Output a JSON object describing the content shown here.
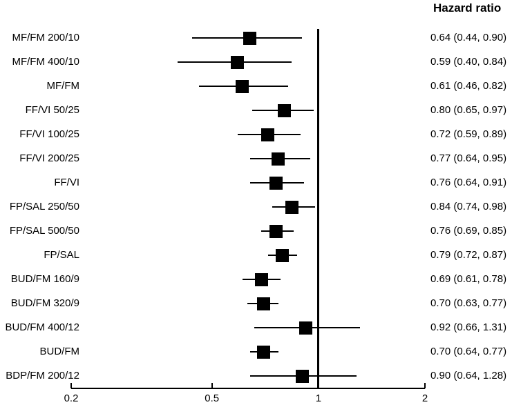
{
  "column_header": "Hazard ratio",
  "colors": {
    "foreground": "#000000",
    "background": "#ffffff"
  },
  "chart_data": {
    "type": "forest",
    "title": "Hazard ratio",
    "x_axis": {
      "scale": "log",
      "range": [
        0.2,
        2
      ],
      "ticks": [
        0.2,
        0.5,
        1,
        2
      ],
      "tick_labels": [
        "0.2",
        "0.5",
        "1",
        "2"
      ],
      "reference_line": 1
    },
    "legend": "none",
    "rows": [
      {
        "label": "MF/FM 200/10",
        "hr": 0.64,
        "ci_low": 0.44,
        "ci_high": 0.9,
        "display": "0.64 (0.44, 0.90)"
      },
      {
        "label": "MF/FM 400/10",
        "hr": 0.59,
        "ci_low": 0.4,
        "ci_high": 0.84,
        "display": "0.59 (0.40, 0.84)"
      },
      {
        "label": "MF/FM",
        "hr": 0.61,
        "ci_low": 0.46,
        "ci_high": 0.82,
        "display": "0.61 (0.46, 0.82)"
      },
      {
        "label": "FF/VI 50/25",
        "hr": 0.8,
        "ci_low": 0.65,
        "ci_high": 0.97,
        "display": "0.80 (0.65, 0.97)"
      },
      {
        "label": "FF/VI 100/25",
        "hr": 0.72,
        "ci_low": 0.59,
        "ci_high": 0.89,
        "display": "0.72 (0.59, 0.89)"
      },
      {
        "label": "FF/VI 200/25",
        "hr": 0.77,
        "ci_low": 0.64,
        "ci_high": 0.95,
        "display": "0.77 (0.64, 0.95)"
      },
      {
        "label": "FF/VI",
        "hr": 0.76,
        "ci_low": 0.64,
        "ci_high": 0.91,
        "display": "0.76 (0.64, 0.91)"
      },
      {
        "label": "FP/SAL 250/50",
        "hr": 0.84,
        "ci_low": 0.74,
        "ci_high": 0.98,
        "display": "0.84 (0.74, 0.98)"
      },
      {
        "label": "FP/SAL 500/50",
        "hr": 0.76,
        "ci_low": 0.69,
        "ci_high": 0.85,
        "display": "0.76 (0.69, 0.85)"
      },
      {
        "label": "FP/SAL",
        "hr": 0.79,
        "ci_low": 0.72,
        "ci_high": 0.87,
        "display": "0.79 (0.72, 0.87)"
      },
      {
        "label": "BUD/FM 160/9",
        "hr": 0.69,
        "ci_low": 0.61,
        "ci_high": 0.78,
        "display": "0.69 (0.61, 0.78)"
      },
      {
        "label": "BUD/FM 320/9",
        "hr": 0.7,
        "ci_low": 0.63,
        "ci_high": 0.77,
        "display": "0.70 (0.63, 0.77)"
      },
      {
        "label": "BUD/FM 400/12",
        "hr": 0.92,
        "ci_low": 0.66,
        "ci_high": 1.31,
        "display": "0.92 (0.66, 1.31)"
      },
      {
        "label": "BUD/FM",
        "hr": 0.7,
        "ci_low": 0.64,
        "ci_high": 0.77,
        "display": "0.70 (0.64, 0.77)"
      },
      {
        "label": "BDP/FM 200/12",
        "hr": 0.9,
        "ci_low": 0.64,
        "ci_high": 1.28,
        "display": "0.90 (0.64, 1.28)"
      }
    ]
  }
}
